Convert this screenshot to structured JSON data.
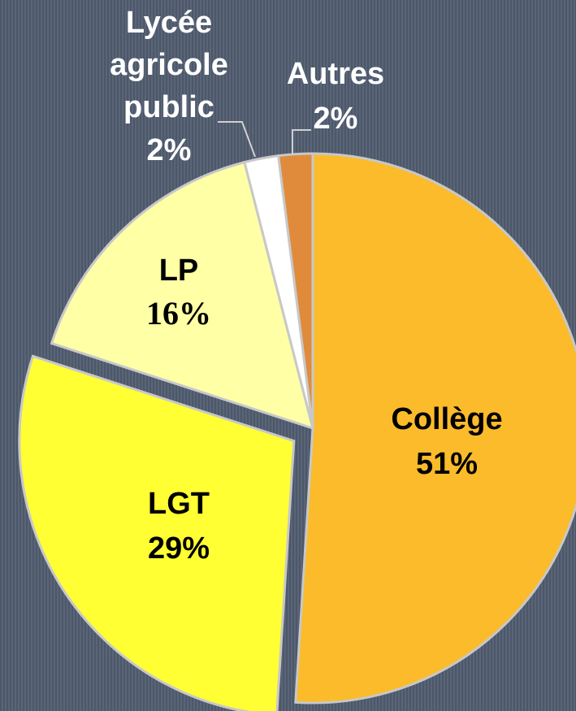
{
  "chart_data": {
    "type": "pie",
    "categories": [
      "Collège",
      "LGT",
      "LP",
      "Lycée agricole public",
      "Autres"
    ],
    "values": [
      51,
      29,
      16,
      2,
      2
    ],
    "value_labels": [
      "51%",
      "29%",
      "16%",
      "2%",
      "2%"
    ],
    "colors": [
      "#fbbb2a",
      "#ffff33",
      "#ffffa6",
      "#ffffff",
      "#e08b3c"
    ]
  }
}
